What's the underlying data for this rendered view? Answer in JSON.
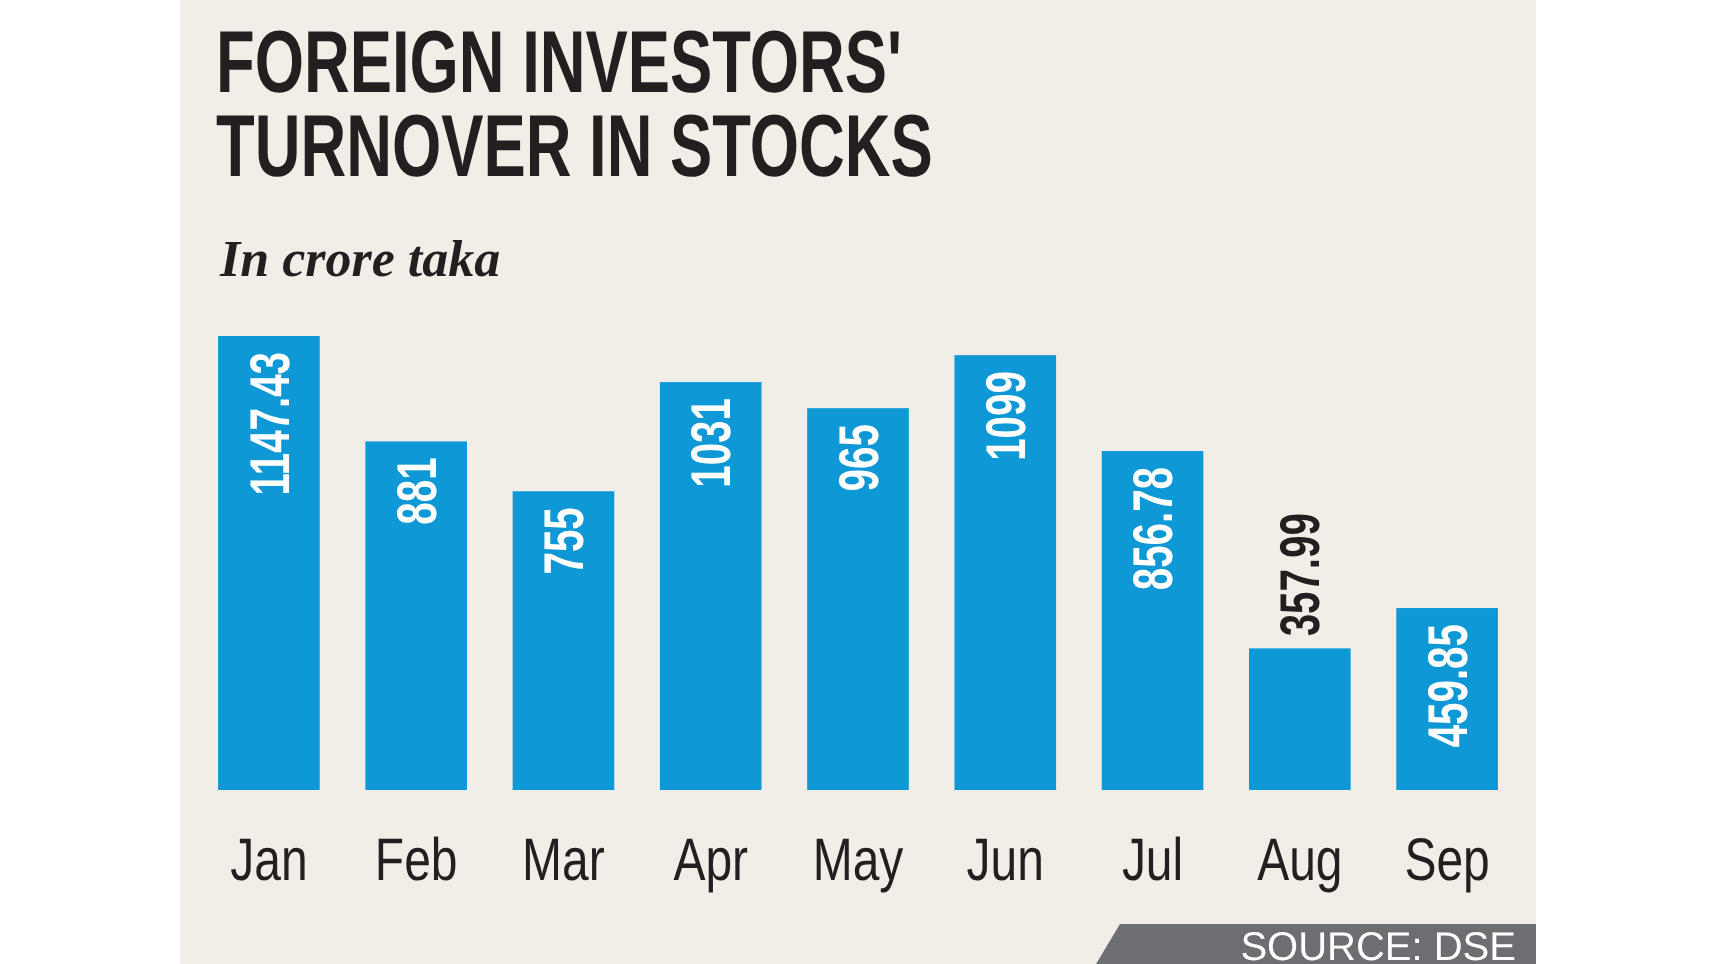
{
  "chart_data": {
    "type": "bar",
    "title": "FOREIGN INVESTORS'\nTURNOVER IN STOCKS",
    "subtitle": "In crore taka",
    "categories": [
      "Jan",
      "Feb",
      "Mar",
      "Apr",
      "May",
      "Jun",
      "Jul",
      "Aug",
      "Sep"
    ],
    "values": [
      1147.43,
      881,
      755,
      1031,
      965,
      1099,
      856.78,
      357.99,
      459.85
    ],
    "color": "#0e98d6",
    "data_labels": true,
    "annotations": [
      "SOURCE: DSE"
    ]
  }
}
